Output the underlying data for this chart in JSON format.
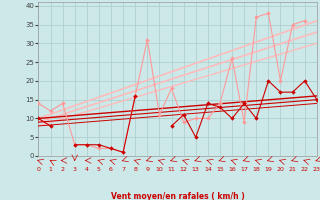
{
  "xlabel": "Vent moyen/en rafales ( km/h )",
  "bg_color": "#cce8e8",
  "grid_color": "#aacccc",
  "x_ticks": [
    0,
    1,
    2,
    3,
    4,
    5,
    6,
    7,
    8,
    9,
    10,
    11,
    12,
    13,
    14,
    15,
    16,
    17,
    18,
    19,
    20,
    21,
    22,
    23
  ],
  "y_ticks": [
    0,
    5,
    10,
    15,
    20,
    25,
    30,
    35,
    40
  ],
  "xlim": [
    0,
    23
  ],
  "ylim": [
    0,
    41
  ],
  "lines": [
    {
      "x": [
        0,
        1,
        2,
        3,
        4,
        5,
        6,
        7,
        8,
        9,
        10,
        11,
        12,
        13,
        14,
        15,
        16,
        17,
        18,
        19,
        20,
        21,
        22,
        23
      ],
      "y": [
        10,
        8,
        null,
        3,
        3,
        3,
        2,
        1,
        16,
        null,
        null,
        8,
        11,
        5,
        14,
        13,
        10,
        14,
        10,
        20,
        17,
        17,
        20,
        15
      ],
      "color": "#cc0000",
      "lw": 0.8,
      "marker": "D",
      "ms": 2.0,
      "zorder": 5,
      "alpha": 1.0
    },
    {
      "x": [
        0,
        1,
        2,
        3,
        4,
        5,
        6,
        7,
        8,
        9,
        10,
        11,
        12,
        13,
        14,
        15,
        16,
        17,
        18,
        19,
        20,
        21,
        22,
        23
      ],
      "y": [
        14,
        12,
        14,
        3,
        3,
        2,
        2,
        1,
        16,
        31,
        11,
        18,
        9,
        10,
        10,
        14,
        26,
        9,
        37,
        38,
        20,
        35,
        36,
        null
      ],
      "color": "#ff9999",
      "lw": 0.8,
      "marker": "D",
      "ms": 2.0,
      "zorder": 4,
      "alpha": 1.0
    },
    {
      "x": [
        0,
        23
      ],
      "y": [
        10,
        36
      ],
      "color": "#ffbbbb",
      "lw": 1.2,
      "marker": null,
      "ms": 0,
      "zorder": 2,
      "alpha": 1.0
    },
    {
      "x": [
        0,
        23
      ],
      "y": [
        9,
        33
      ],
      "color": "#ffbbbb",
      "lw": 1.2,
      "marker": null,
      "ms": 0,
      "zorder": 2,
      "alpha": 1.0
    },
    {
      "x": [
        0,
        23
      ],
      "y": [
        8,
        30
      ],
      "color": "#ffbbbb",
      "lw": 1.0,
      "marker": null,
      "ms": 0,
      "zorder": 2,
      "alpha": 1.0
    },
    {
      "x": [
        0,
        23
      ],
      "y": [
        10,
        16
      ],
      "color": "#cc0000",
      "lw": 1.0,
      "marker": null,
      "ms": 0,
      "zorder": 3,
      "alpha": 1.0
    },
    {
      "x": [
        0,
        23
      ],
      "y": [
        9,
        15
      ],
      "color": "#cc0000",
      "lw": 0.8,
      "marker": null,
      "ms": 0,
      "zorder": 3,
      "alpha": 1.0
    },
    {
      "x": [
        0,
        23
      ],
      "y": [
        8,
        14
      ],
      "color": "#cc0000",
      "lw": 0.7,
      "marker": null,
      "ms": 0,
      "zorder": 3,
      "alpha": 1.0
    }
  ],
  "wind_arrow_color": "#cc0000",
  "wind_arrow_angles": [
    -45,
    -30,
    -90,
    180,
    -90,
    -45,
    -45,
    -135,
    -45,
    -135,
    -45,
    -135,
    -45,
    -135,
    -45,
    -135,
    -45,
    -135,
    -45,
    -135,
    -45,
    -135,
    -45,
    -135
  ]
}
